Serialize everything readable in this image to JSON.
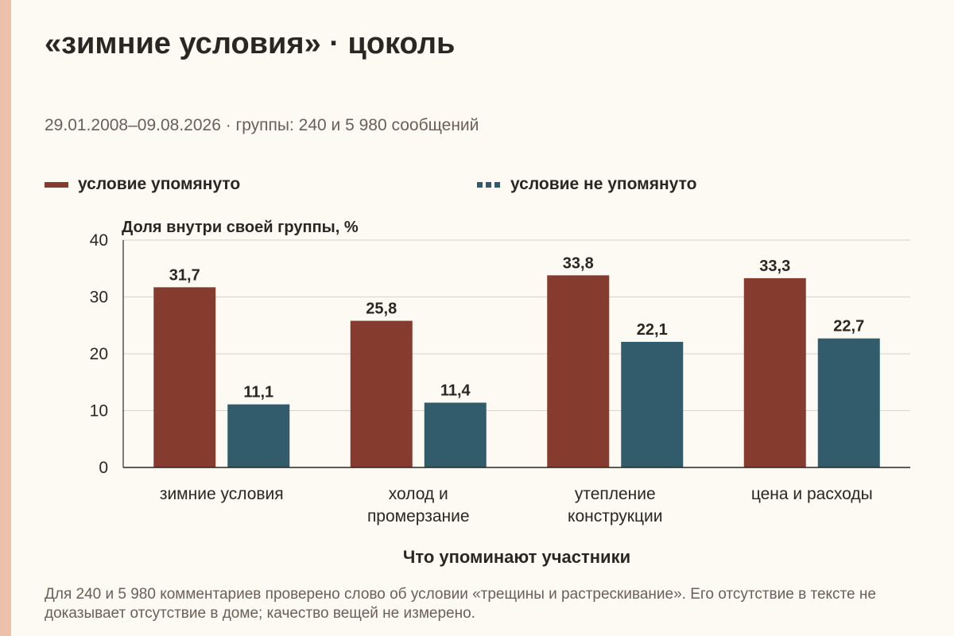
{
  "header": {
    "title": "«зимние условия» · цоколь",
    "subtitle": "29.01.2008–09.08.2026 · группы: 240 и 5 980 сообщений"
  },
  "legend": {
    "items": [
      {
        "label": "условие упомянуто",
        "color": "#853b2e",
        "style": "solid"
      },
      {
        "label": "условие не упомянуто",
        "color": "#325c6b",
        "style": "dashed"
      }
    ]
  },
  "chart_data": {
    "type": "bar",
    "ylabel": "Доля внутри своей группы, %",
    "xlabel": "Что упоминают участники",
    "ylim": [
      0,
      40
    ],
    "yticks": [
      0,
      10,
      20,
      30,
      40
    ],
    "grid": true,
    "legend_position": "top",
    "categories": [
      [
        "зимние условия"
      ],
      [
        "холод и",
        "промерзание"
      ],
      [
        "утепление",
        "конструкции"
      ],
      [
        "цена и расходы"
      ]
    ],
    "series": [
      {
        "name": "условие упомянуто",
        "color": "#853b2e",
        "values": [
          31.7,
          25.8,
          33.8,
          33.3
        ],
        "labels": [
          "31,7",
          "25,8",
          "33,8",
          "33,3"
        ]
      },
      {
        "name": "условие не упомянуто",
        "color": "#325c6b",
        "values": [
          11.1,
          11.4,
          22.1,
          22.7
        ],
        "labels": [
          "11,1",
          "11,4",
          "22,1",
          "22,7"
        ]
      }
    ]
  },
  "footnote": "Для 240 и 5 980 комментариев проверено слово об условии «трещины и растрескивание». Его отсутствие в тексте не доказывает отсутствие в доме; качество вещей не измерено."
}
